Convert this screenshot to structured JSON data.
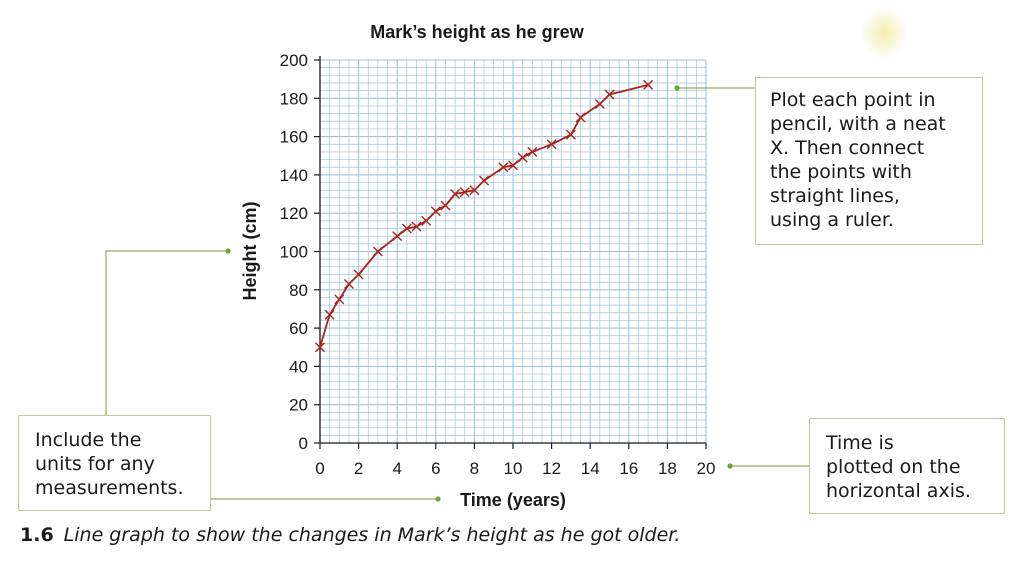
{
  "chart_data": {
    "type": "line",
    "title": "Mark’s height as he grew",
    "xlabel": "Time (years)",
    "ylabel": "Height (cm)",
    "xlim": [
      0,
      20
    ],
    "ylim": [
      0,
      200
    ],
    "x_ticks": [
      0,
      2,
      4,
      6,
      8,
      10,
      12,
      14,
      16,
      18,
      20
    ],
    "y_ticks": [
      0,
      20,
      40,
      60,
      80,
      100,
      120,
      140,
      160,
      180,
      200
    ],
    "grid": true,
    "marker": "x",
    "line_color": "#a8251b",
    "grid_color": "#9fc3dd",
    "series": [
      {
        "x": [
          0,
          0.5,
          1,
          1.5,
          2,
          3,
          4,
          4.5,
          5,
          5.5,
          6,
          6.5,
          7,
          7.5,
          8,
          8.5,
          9.5,
          10,
          10.5,
          11,
          12,
          13,
          13.5,
          14.5,
          15,
          17
        ],
        "y": [
          50,
          67,
          75,
          83,
          88,
          100,
          108,
          112,
          113,
          116,
          121,
          124,
          130,
          131,
          132,
          137,
          144,
          145,
          149,
          152,
          156,
          161,
          170,
          177,
          182,
          187
        ]
      }
    ]
  },
  "callouts": {
    "plot_points": "Plot each point in\npencil, with a neat\nX. Then connect\nthe points with\nstraight lines,\nusing a ruler.",
    "units": "Include the\nunits for any\nmeasurements.",
    "time_axis": "Time is\nplotted on the\nhorizontal axis."
  },
  "caption": {
    "number": "1.6",
    "text": "Line graph to show the changes in Mark’s height as he got older."
  },
  "colors": {
    "connector": "#8a8f3c",
    "connector_dot": "#6da33a",
    "box_border": "#c9c59a"
  }
}
